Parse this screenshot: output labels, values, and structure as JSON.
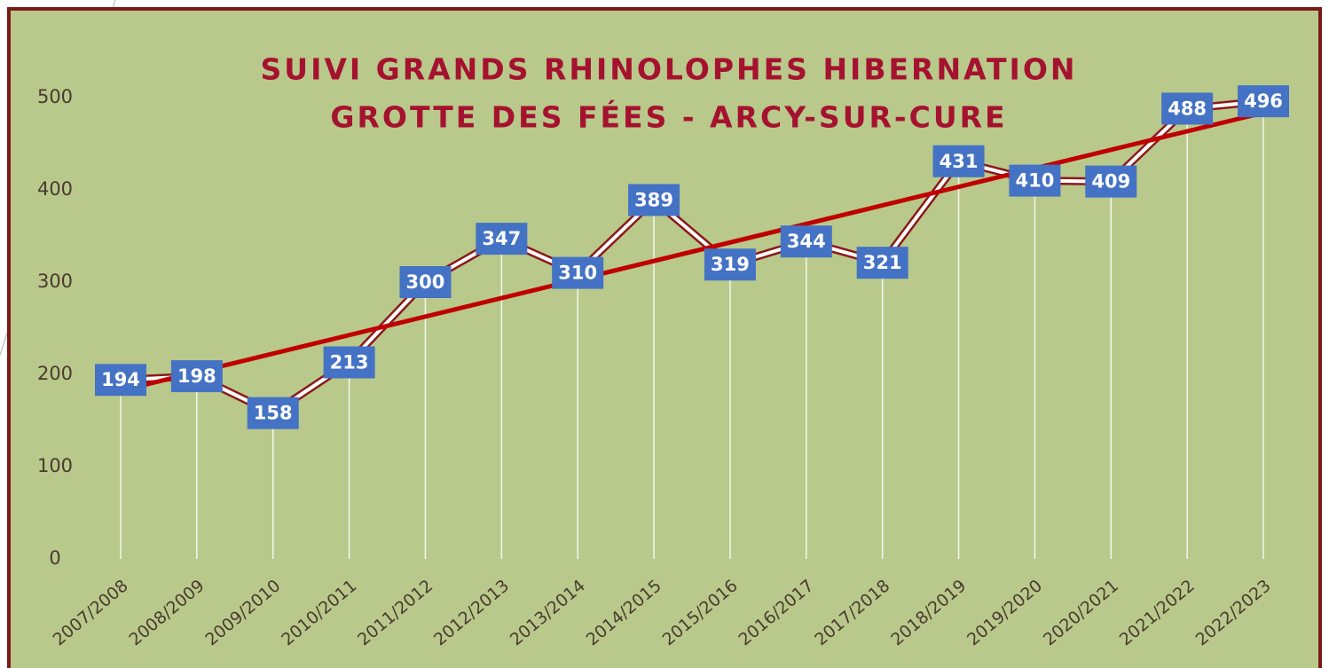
{
  "chart_data": {
    "type": "line",
    "title": [
      "SUIVI GRANDS RHINOLOPHES HIBERNATION",
      "GROTTE DES FÉES - ARCY-SUR-CURE"
    ],
    "categories": [
      "2007/2008",
      "2008/2009",
      "2009/2010",
      "2010/2011",
      "2011/2012",
      "2012/2013",
      "2013/2014",
      "2014/2015",
      "2015/2016",
      "2016/2017",
      "2017/2018",
      "2018/2019",
      "2019/2020",
      "2020/2021",
      "2021/2022",
      "2022/2023"
    ],
    "values": [
      194,
      198,
      158,
      213,
      300,
      347,
      310,
      389,
      319,
      344,
      321,
      431,
      410,
      409,
      488,
      496
    ],
    "color": "#ffffff",
    "outline_color": "#8b1a1a",
    "label_color": "#4472c4",
    "ylim": [
      0,
      500
    ],
    "yticks": [
      0,
      100,
      200,
      300,
      400,
      500
    ],
    "drop_lines": true,
    "trendline": {
      "type": "linear",
      "color": "#c00000"
    }
  }
}
